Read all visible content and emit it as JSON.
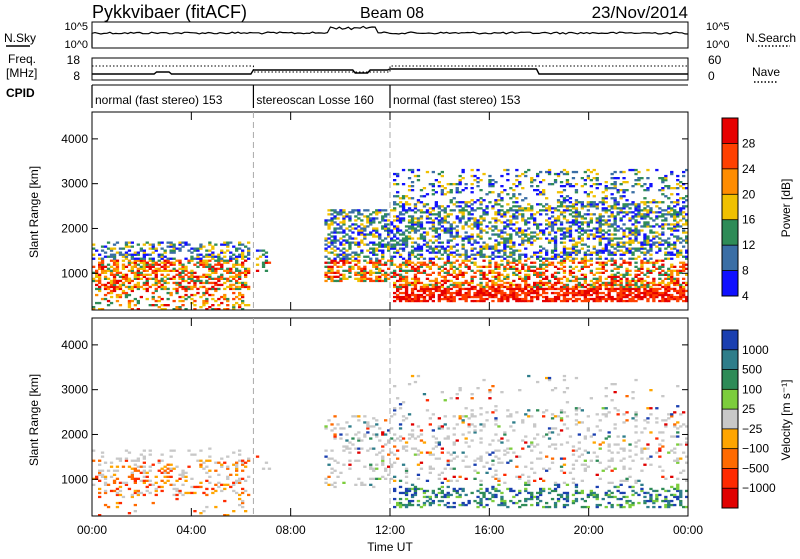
{
  "header": {
    "title": "Pykkvibaer (fitACF)",
    "beam": "Beam 08",
    "date": "23/Nov/2014"
  },
  "strips": {
    "nsky": {
      "left_label": "N.Sky",
      "left_ticks": [
        "10^5",
        "10^0"
      ],
      "right_ticks": [
        "10^5",
        "10^0"
      ],
      "right_label": "N.Search"
    },
    "freq": {
      "left_label_1": "Freq.",
      "left_label_2": "[MHz]",
      "left_ticks": [
        "18",
        "8"
      ],
      "right_ticks": [
        "60",
        "0"
      ],
      "right_label": "Nave"
    },
    "cpid": {
      "label": "CPID",
      "segments": [
        {
          "label": "normal (fast stereo) 153",
          "start": 0,
          "end": 6.5
        },
        {
          "label": "stereoscan Losse 160",
          "start": 6.5,
          "end": 12
        },
        {
          "label": "normal (fast stereo) 153",
          "start": 12,
          "end": 24
        }
      ]
    }
  },
  "chart_data": [
    {
      "type": "heatmap",
      "panel": "power",
      "ylabel": "Slant Range [km]",
      "yticks": [
        1000,
        2000,
        3000,
        4000
      ],
      "ylim": [
        180,
        4600
      ],
      "xlim": [
        0,
        24
      ],
      "xticks": [
        0,
        4,
        8,
        12,
        16,
        20,
        24
      ],
      "dashed_lines_hours": [
        6.5,
        12
      ],
      "colorbar": {
        "label": "Power [dB]",
        "ticks": [
          "28",
          "24",
          "20",
          "16",
          "12",
          "8",
          "4"
        ],
        "colors": [
          "#e60000",
          "#ff4000",
          "#ff8c00",
          "#f0c000",
          "#2e8b57",
          "#3a6ea5",
          "#1010ff"
        ]
      }
    },
    {
      "type": "heatmap",
      "panel": "velocity",
      "ylabel": "Slant Range [km]",
      "yticks": [
        1000,
        2000,
        3000,
        4000
      ],
      "ylim": [
        180,
        4600
      ],
      "xlim": [
        0,
        24
      ],
      "xticks": [
        0,
        4,
        8,
        12,
        16,
        20,
        24
      ],
      "xticklabels": [
        "00:00",
        "04:00",
        "08:00",
        "12:00",
        "16:00",
        "20:00",
        "00:00"
      ],
      "xlabel": "Time UT",
      "dashed_lines_hours": [
        6.5,
        12
      ],
      "colorbar": {
        "label": "Velocity [m s⁻¹]",
        "ticks": [
          "1000",
          "500",
          "100",
          "25",
          "−25",
          "−100",
          "−500",
          "−1000"
        ],
        "colors": [
          "#1a3fb0",
          "#2e7d8a",
          "#2e8b57",
          "#7ccd3c",
          "#c8c8c8",
          "#ffa500",
          "#ff6a00",
          "#ff2a00",
          "#e00000"
        ]
      }
    }
  ]
}
